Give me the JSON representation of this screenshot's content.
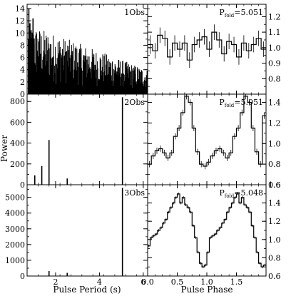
{
  "chart_data": [
    {
      "id": "p1l",
      "type": "bar",
      "x_scale": "left",
      "label_text": "1Obs",
      "xlim": [
        0.7,
        6.2
      ],
      "ylim": [
        0,
        14.7
      ],
      "y_ticks": [
        0,
        2,
        4,
        6,
        8,
        10,
        12,
        14
      ],
      "noise": {
        "x_start": 0.75,
        "x_end": 6.2,
        "step": 0.02,
        "envelope_start": 11.5,
        "envelope_end": 4.0
      },
      "bars": [
        {
          "x": 0.78,
          "y": 14.0
        },
        {
          "x": 0.83,
          "y": 11.6
        },
        {
          "x": 0.88,
          "y": 10.3
        },
        {
          "x": 0.92,
          "y": 8.2
        },
        {
          "x": 0.97,
          "y": 12.4
        },
        {
          "x": 1.02,
          "y": 9.1
        },
        {
          "x": 1.12,
          "y": 9.8
        },
        {
          "x": 1.25,
          "y": 8.6
        }
      ]
    },
    {
      "id": "p1r",
      "type": "step",
      "x_scale": "right",
      "label_text": "P",
      "label_sub": "fold",
      "label_value": "=5.051",
      "xlim": [
        0,
        2
      ],
      "ylim": [
        0.7,
        1.28
      ],
      "y_ticks": [
        0.8,
        0.9,
        1.0,
        1.1,
        1.2
      ],
      "values": [
        1.02,
        0.98,
        1.08,
        1.06,
        0.94,
        1.03,
        0.99,
        1.03,
        0.92,
        1.02,
        1.05,
        1.07,
        0.99,
        1.1,
        1.05,
        0.96,
        1.04,
        1.02,
        0.94,
        1.03,
        0.98,
        1.02,
        1.06,
        0.99
      ],
      "errors": [
        0.06,
        0.05,
        0.05,
        0.05,
        0.05,
        0.05,
        0.05,
        0.05,
        0.05,
        0.05,
        0.05,
        0.05,
        0.05,
        0.05,
        0.05,
        0.05,
        0.05,
        0.05,
        0.05,
        0.05,
        0.05,
        0.05,
        0.05,
        0.05
      ]
    },
    {
      "id": "p2l",
      "type": "bar",
      "x_scale": "left",
      "label_text": "2Obs",
      "ylabel": "Power",
      "xlim": [
        0.7,
        6.2
      ],
      "ylim": [
        0,
        870
      ],
      "y_ticks": [
        0,
        200,
        400,
        600,
        800
      ],
      "noise": null,
      "bars": [
        {
          "x": 1.05,
          "y": 90
        },
        {
          "x": 1.37,
          "y": 180
        },
        {
          "x": 1.7,
          "y": 430
        },
        {
          "x": 2.53,
          "y": 60
        },
        {
          "x": 5.05,
          "y": 840
        }
      ]
    },
    {
      "id": "p2r",
      "type": "step",
      "x_scale": "right",
      "label_text": "P",
      "label_sub": "fold",
      "label_value": "=5.051",
      "xlim": [
        0,
        2
      ],
      "ylim": [
        0.6,
        1.48
      ],
      "y_ticks": [
        0.6,
        0.8,
        1.0,
        1.2,
        1.4
      ],
      "values": [
        0.8,
        0.88,
        0.93,
        0.95,
        0.91,
        0.86,
        0.91,
        1.07,
        1.15,
        1.3,
        1.46,
        1.4,
        1.15,
        0.92,
        0.8,
        0.78,
        0.82,
        0.88,
        0.93,
        0.95,
        0.91,
        0.86,
        0.91,
        1.07,
        1.15,
        1.3,
        1.46,
        1.4,
        1.15,
        0.92,
        0.8,
        1.27
      ],
      "errors": [
        0.03,
        0.03,
        0.03,
        0.03,
        0.03,
        0.03,
        0.03,
        0.03,
        0.03,
        0.03,
        0.03,
        0.03,
        0.03,
        0.03,
        0.03,
        0.03,
        0.03,
        0.03,
        0.03,
        0.03,
        0.03,
        0.03,
        0.03,
        0.03,
        0.03,
        0.03,
        0.03,
        0.03,
        0.03,
        0.03,
        0.03,
        0.03
      ]
    },
    {
      "id": "p3l",
      "type": "bar",
      "x_scale": "left",
      "label_text": "3Obs",
      "xlim": [
        0.7,
        6.2
      ],
      "ylim": [
        0,
        5800
      ],
      "y_ticks": [
        0,
        1000,
        2000,
        3000,
        4000,
        5000
      ],
      "noise": null,
      "bars": [
        {
          "x": 1.7,
          "y": 320
        },
        {
          "x": 2.53,
          "y": 200
        },
        {
          "x": 5.05,
          "y": 5600
        }
      ]
    },
    {
      "id": "p3r",
      "type": "step",
      "x_scale": "right",
      "label_text": "P",
      "label_sub": "fold",
      "label_value": "=5.048",
      "xlim": [
        0,
        2
      ],
      "ylim": [
        0.6,
        1.6
      ],
      "y_ticks": [
        0.6,
        0.8,
        1.0,
        1.2,
        1.4,
        1.6
      ],
      "values": [
        0.93,
        1.02,
        1.04,
        1.06,
        1.1,
        1.13,
        1.18,
        1.22,
        1.3,
        1.35,
        1.4,
        1.46,
        1.5,
        1.4,
        1.46,
        1.38,
        1.35,
        1.3,
        1.15,
        1.02,
        0.86,
        0.74,
        0.7,
        0.72,
        0.86,
        1.02,
        1.04,
        1.06,
        1.1,
        1.13,
        1.18,
        1.22,
        1.3,
        1.35,
        1.4,
        1.46,
        1.5,
        1.4,
        1.46,
        1.38,
        1.35,
        1.3,
        1.15,
        1.02,
        0.86,
        0.74,
        0.7,
        0.72
      ],
      "errors": [
        0.015,
        0.015,
        0.015,
        0.015,
        0.015,
        0.015,
        0.015,
        0.015,
        0.015,
        0.015,
        0.015,
        0.015,
        0.015,
        0.015,
        0.015,
        0.015,
        0.015,
        0.015,
        0.015,
        0.015,
        0.015,
        0.015,
        0.015,
        0.015,
        0.015,
        0.015,
        0.015,
        0.015,
        0.015,
        0.015,
        0.015,
        0.015,
        0.015,
        0.015,
        0.015,
        0.015,
        0.015,
        0.015,
        0.015,
        0.015,
        0.015,
        0.015,
        0.015,
        0.015,
        0.015,
        0.015,
        0.015,
        0.015
      ]
    }
  ],
  "x_axes": {
    "left": {
      "label": "Pulse Period (s)",
      "xlim": [
        0.7,
        6.2
      ],
      "ticks": [
        2,
        4,
        6
      ],
      "tick_labels": [
        "2",
        "4",
        "6"
      ]
    },
    "right": {
      "label": "Pulse Phase",
      "xlim": [
        0,
        2
      ],
      "ticks": [
        0,
        0.5,
        1.0,
        1.5
      ],
      "tick_labels": [
        "0.0",
        "0.5",
        "1.0",
        "1.5"
      ]
    }
  }
}
